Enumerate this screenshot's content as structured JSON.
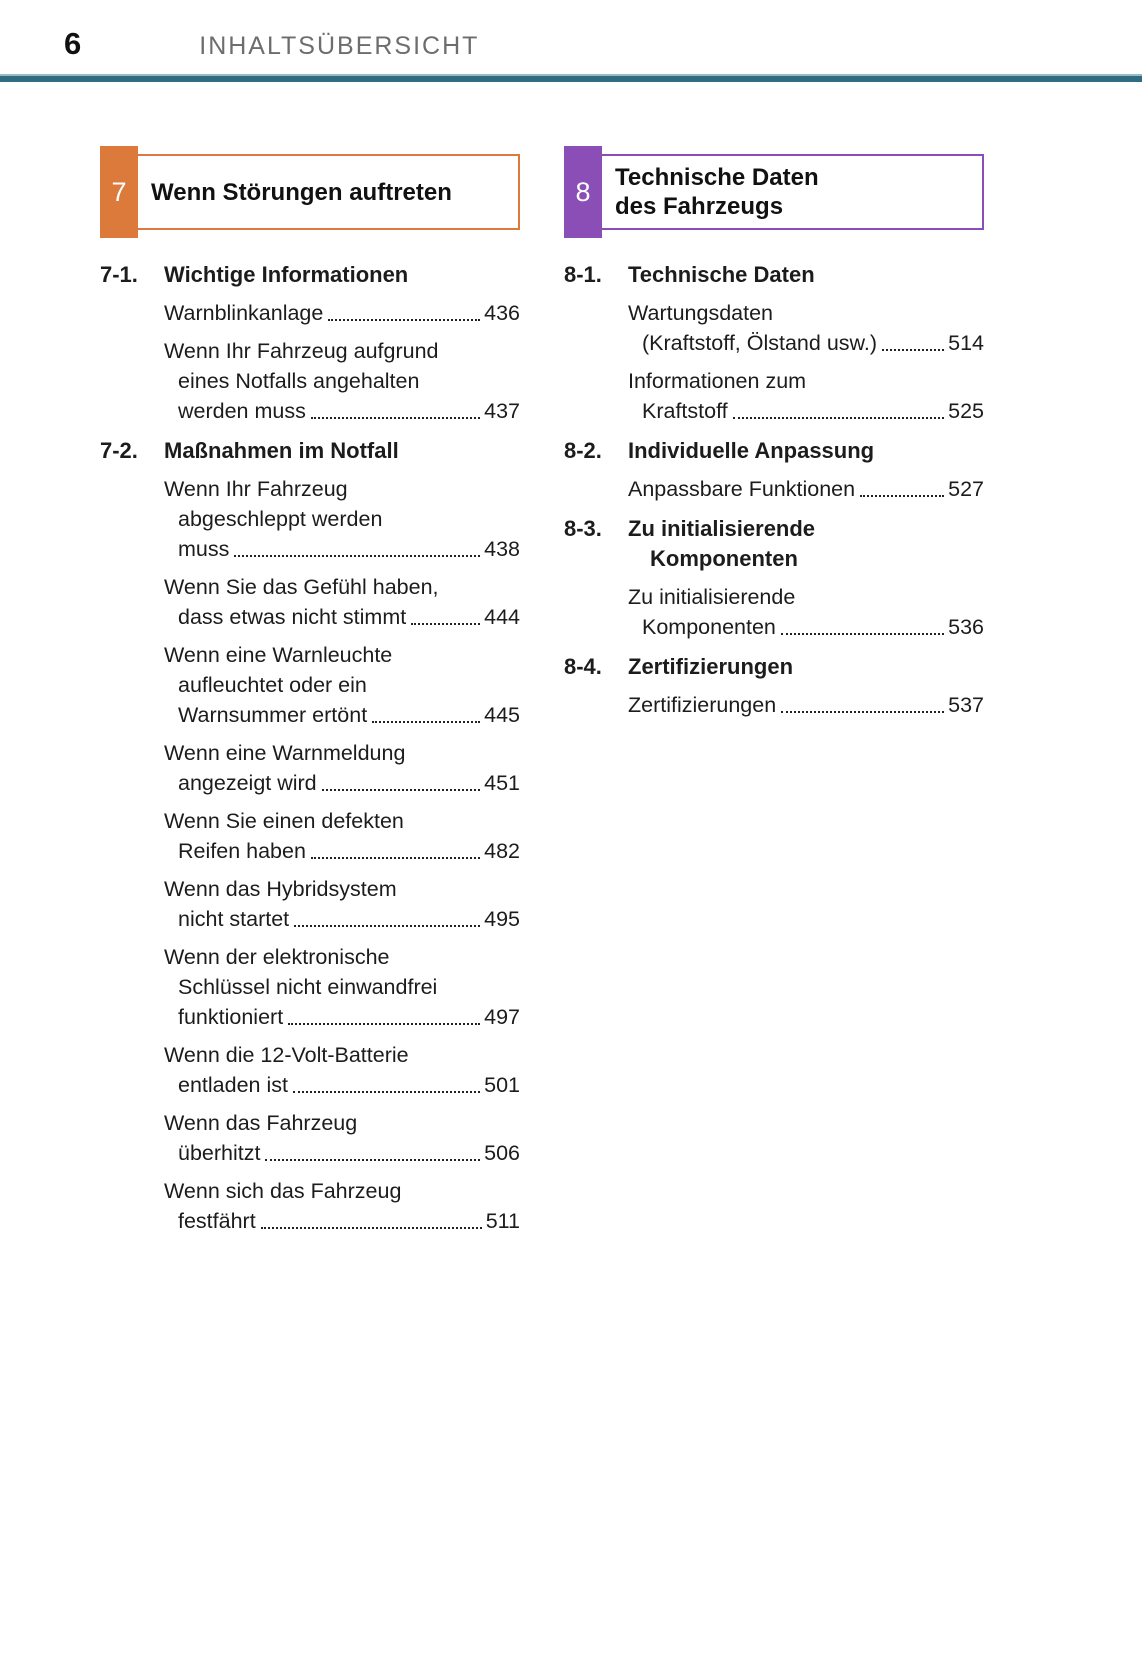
{
  "header": {
    "page_number": "6",
    "title": "INHALTSÜBERSICHT"
  },
  "rule_color": "#2f6c82",
  "sections": [
    {
      "number": "7",
      "color": "#dc7a3c",
      "title_lines": [
        "Wenn Störungen auftreten"
      ],
      "groups": [
        {
          "label": "7-1.",
          "heading_lines": [
            "Wichtige Informationen"
          ],
          "entries": [
            {
              "lines": [
                "Warnblinkanlage"
              ],
              "page": "436"
            },
            {
              "lines": [
                "Wenn Ihr Fahrzeug aufgrund",
                "eines Notfalls angehalten",
                "werden muss"
              ],
              "page": "437"
            }
          ]
        },
        {
          "label": "7-2.",
          "heading_lines": [
            "Maßnahmen im Notfall"
          ],
          "entries": [
            {
              "lines": [
                "Wenn Ihr Fahrzeug",
                "abgeschleppt werden",
                "muss"
              ],
              "page": "438"
            },
            {
              "lines": [
                "Wenn Sie das Gefühl haben,",
                "dass etwas nicht stimmt"
              ],
              "page": "444"
            },
            {
              "lines": [
                "Wenn eine Warnleuchte",
                "aufleuchtet oder ein",
                "Warnsummer ertönt"
              ],
              "page": "445"
            },
            {
              "lines": [
                "Wenn eine Warnmeldung",
                "angezeigt wird"
              ],
              "page": "451"
            },
            {
              "lines": [
                "Wenn Sie einen defekten",
                "Reifen haben"
              ],
              "page": "482"
            },
            {
              "lines": [
                "Wenn das Hybridsystem",
                "nicht startet"
              ],
              "page": "495"
            },
            {
              "lines": [
                "Wenn der elektronische",
                "Schlüssel nicht einwandfrei",
                "funktioniert"
              ],
              "page": "497"
            },
            {
              "lines": [
                "Wenn die 12-Volt-Batterie",
                "entladen ist"
              ],
              "page": "501"
            },
            {
              "lines": [
                "Wenn das Fahrzeug",
                "überhitzt"
              ],
              "page": "506"
            },
            {
              "lines": [
                "Wenn sich das Fahrzeug",
                "festfährt"
              ],
              "page": "511"
            }
          ]
        }
      ]
    },
    {
      "number": "8",
      "color": "#8a4eb6",
      "title_lines": [
        "Technische Daten",
        "des Fahrzeugs"
      ],
      "groups": [
        {
          "label": "8-1.",
          "heading_lines": [
            "Technische Daten"
          ],
          "entries": [
            {
              "lines": [
                "Wartungsdaten",
                "(Kraftstoff, Ölstand usw.)"
              ],
              "page": "514"
            },
            {
              "lines": [
                "Informationen zum",
                "Kraftstoff"
              ],
              "page": "525"
            }
          ]
        },
        {
          "label": "8-2.",
          "heading_lines": [
            "Individuelle Anpassung"
          ],
          "entries": [
            {
              "lines": [
                "Anpassbare Funktionen"
              ],
              "page": "527"
            }
          ]
        },
        {
          "label": "8-3.",
          "heading_lines": [
            "Zu initialisierende",
            "Komponenten"
          ],
          "entries": [
            {
              "lines": [
                "Zu initialisierende",
                "Komponenten"
              ],
              "page": "536"
            }
          ]
        },
        {
          "label": "8-4.",
          "heading_lines": [
            "Zertifizierungen"
          ],
          "entries": [
            {
              "lines": [
                "Zertifizierungen"
              ],
              "page": "537"
            }
          ]
        }
      ]
    }
  ]
}
